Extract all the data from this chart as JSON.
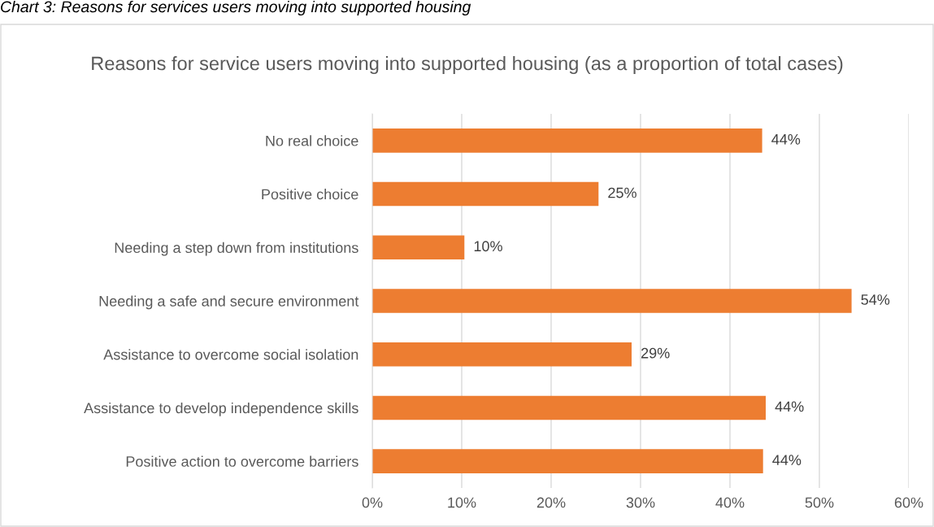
{
  "chart_data": {
    "type": "bar",
    "orientation": "horizontal",
    "title": "Reasons for service users moving into supported housing (as a proportion of total cases)",
    "annotations": [
      "Chart 3: Reasons for services users moving into supported housing"
    ],
    "categories": [
      "No real choice",
      "Positive choice",
      "Needing a step down from institutions",
      "Needing a safe and secure environment",
      "Assistance to overcome social isolation",
      "Assistance to develop independence skills",
      "Positive action to overcome barriers"
    ],
    "values": [
      43.6,
      25.3,
      10.3,
      53.6,
      29.0,
      44.0,
      43.7
    ],
    "value_labels": [
      "44%",
      "25%",
      "10%",
      "54%",
      "29%",
      "44%",
      "44%"
    ],
    "color": "#ed7d31",
    "xlim": [
      0,
      60
    ],
    "xticks": [
      {
        "value": 0,
        "label": "0%"
      },
      {
        "value": 10,
        "label": "10%"
      },
      {
        "value": 20,
        "label": "20%"
      },
      {
        "value": 30,
        "label": "30%"
      },
      {
        "value": 40,
        "label": "40%"
      },
      {
        "value": 50,
        "label": "50%"
      },
      {
        "value": 60,
        "label": "60%"
      }
    ],
    "grid": "x"
  }
}
